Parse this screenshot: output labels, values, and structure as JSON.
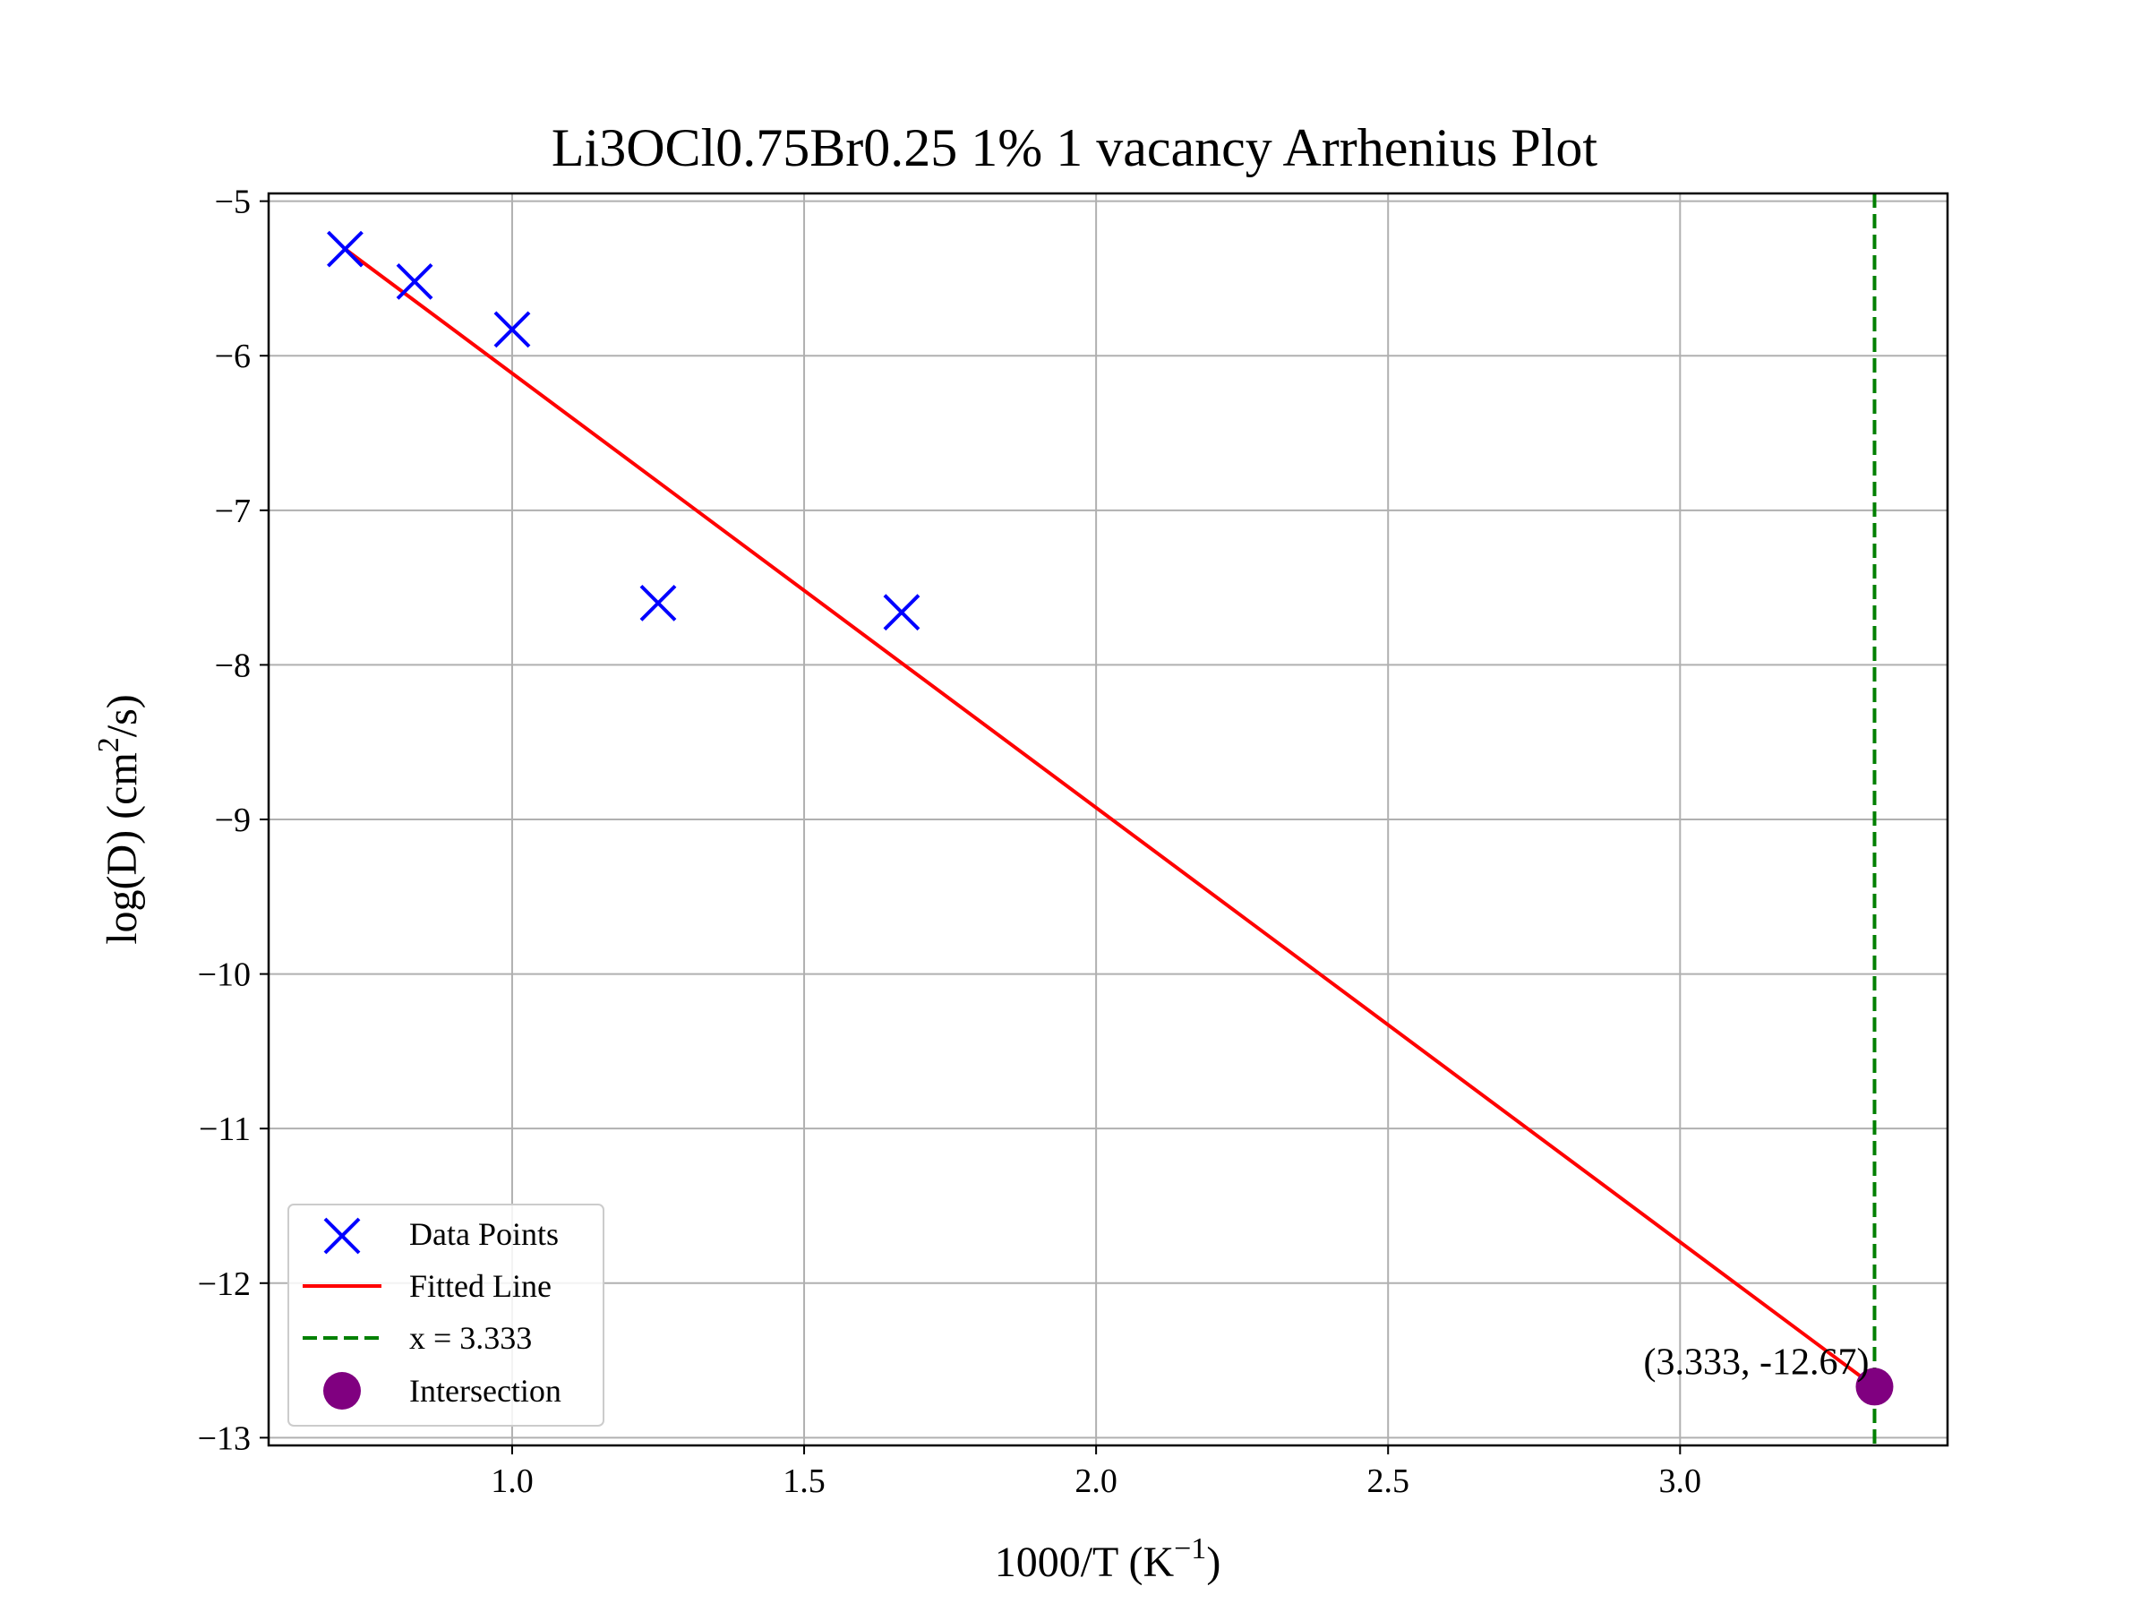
{
  "chart_data": {
    "type": "scatter",
    "title": "Li3OCl0.75Br0.25 1% 1 vacancy Arrhenius Plot",
    "xlabel": {
      "main": "1000/T (K",
      "sup": "−1",
      "end": ")"
    },
    "ylabel": {
      "main": "log(D) (cm",
      "sup": "2",
      "end": "/s)"
    },
    "xlim": [
      0.583,
      3.458
    ],
    "ylim": [
      -13.05,
      -4.95
    ],
    "xticks": [
      1.0,
      1.5,
      2.0,
      2.5,
      3.0
    ],
    "xtick_labels": [
      "1.0",
      "1.5",
      "2.0",
      "2.5",
      "3.0"
    ],
    "yticks": [
      -5,
      -6,
      -7,
      -8,
      -9,
      -10,
      -11,
      -12,
      -13
    ],
    "ytick_labels": [
      "−5",
      "−6",
      "−7",
      "−8",
      "−9",
      "−10",
      "−11",
      "−12",
      "−13"
    ],
    "grid": true,
    "legend_position": "lower-left",
    "series": [
      {
        "name": "Data Points",
        "kind": "scatter",
        "marker": "x",
        "color": "#0000ff",
        "x": [
          0.714,
          0.833,
          1.0,
          1.25,
          1.667
        ],
        "y": [
          -5.31,
          -5.52,
          -5.83,
          -7.6,
          -7.66
        ]
      },
      {
        "name": "Fitted Line",
        "kind": "line",
        "color": "#ff0000",
        "x": [
          0.714,
          3.333
        ],
        "y": [
          -5.31,
          -12.67
        ]
      },
      {
        "name": "x = 3.333",
        "kind": "vline",
        "style": "dashed",
        "color": "#008000",
        "x": 3.333
      },
      {
        "name": "Intersection",
        "kind": "point",
        "color": "#800080",
        "x": 3.333,
        "y": -12.67
      }
    ],
    "annotation": {
      "text": "(3.333, -12.67)",
      "x": 3.333,
      "y": -12.67
    }
  }
}
